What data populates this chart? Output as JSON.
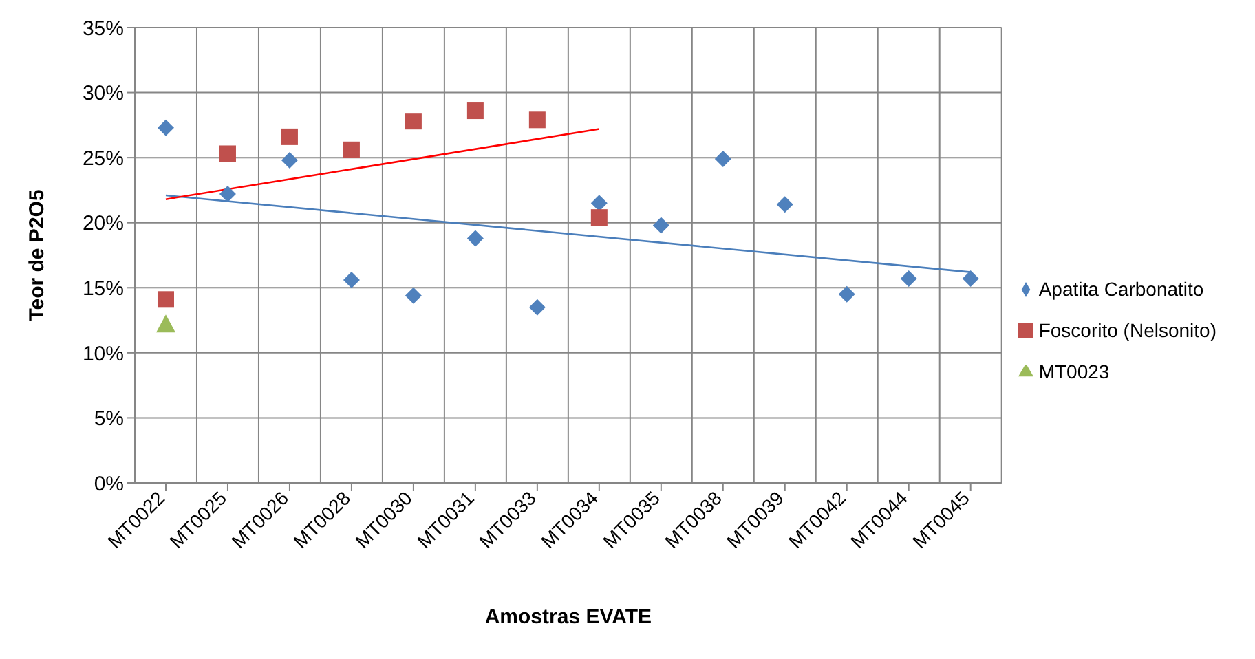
{
  "chart_data": {
    "type": "scatter",
    "xlabel": "Amostras EVATE",
    "ylabel": "Teor de P2O5",
    "categories": [
      "MT0022",
      "MT0025",
      "MT0026",
      "MT0028",
      "MT0030",
      "MT0031",
      "MT0033",
      "MT0034",
      "MT0035",
      "MT0038",
      "MT0039",
      "MT0042",
      "MT0044",
      "MT0045"
    ],
    "series": [
      {
        "name": "Apatita Carbonatito",
        "color": "#4f81bd",
        "marker": "diamond",
        "values": [
          27.3,
          22.2,
          24.8,
          15.6,
          14.4,
          18.8,
          13.5,
          21.5,
          19.8,
          24.9,
          21.4,
          14.5,
          15.7,
          15.7
        ]
      },
      {
        "name": "Foscorito (Nelsonito)",
        "color": "#c0504d",
        "marker": "square",
        "values": [
          14.1,
          25.3,
          26.6,
          25.6,
          27.8,
          28.6,
          27.9,
          20.4,
          null,
          null,
          null,
          null,
          null,
          null
        ]
      },
      {
        "name": "MT0023",
        "color": "#9bbb59",
        "marker": "triangle",
        "values": [
          12.2,
          null,
          null,
          null,
          null,
          null,
          null,
          null,
          null,
          null,
          null,
          null,
          null,
          null
        ]
      },
      {
        "type": "line",
        "color": "#4a7ebb",
        "x": [
          "MT0022",
          "MT0045"
        ],
        "values": [
          22.1,
          16.2
        ]
      },
      {
        "type": "line",
        "color": "#ff0000",
        "x": [
          "MT0022",
          "MT0034"
        ],
        "values": [
          21.8,
          27.2
        ]
      }
    ],
    "ylim": [
      0,
      35
    ],
    "yticks": [
      {
        "value": 0,
        "label": "0%"
      },
      {
        "value": 5,
        "label": "5%"
      },
      {
        "value": 10,
        "label": "10%"
      },
      {
        "value": 15,
        "label": "15%"
      },
      {
        "value": 20,
        "label": "20%"
      },
      {
        "value": 25,
        "label": "25%"
      },
      {
        "value": 30,
        "label": "30%"
      },
      {
        "value": 35,
        "label": "35%"
      }
    ],
    "grid": true,
    "legend": "right"
  }
}
